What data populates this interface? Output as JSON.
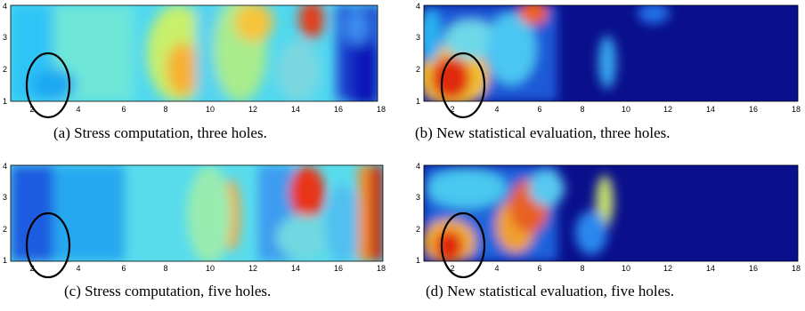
{
  "figure": {
    "panels": [
      {
        "id": "a",
        "caption": "(a) Stress computation, three holes.",
        "x_ticks": [
          "2",
          "4",
          "6",
          "8",
          "10",
          "12",
          "14",
          "16",
          "18"
        ],
        "y_ticks": [
          "1",
          "2",
          "3",
          "4"
        ],
        "colormap": "jet",
        "hole_outline": {
          "center_x": 2.5,
          "center_y": 1.5,
          "radius_x": 1.0,
          "radius_y": 1.0
        }
      },
      {
        "id": "b",
        "caption": "(b) New statistical evaluation, three holes.",
        "x_ticks": [
          "2",
          "4",
          "6",
          "8",
          "10",
          "12",
          "14",
          "16",
          "18"
        ],
        "y_ticks": [
          "1",
          "2",
          "3",
          "4"
        ],
        "colormap": "jet",
        "hole_outline": {
          "center_x": 2.5,
          "center_y": 1.5,
          "radius_x": 1.0,
          "radius_y": 1.0
        }
      },
      {
        "id": "c",
        "caption": "(c) Stress computation, five holes.",
        "x_ticks": [
          "2",
          "4",
          "6",
          "8",
          "10",
          "12",
          "14",
          "16",
          "18"
        ],
        "y_ticks": [
          "1",
          "2",
          "3",
          "4"
        ],
        "colormap": "jet",
        "hole_outline": {
          "center_x": 2.5,
          "center_y": 1.5,
          "radius_x": 1.0,
          "radius_y": 1.0
        }
      },
      {
        "id": "d",
        "caption": "(d) New statistical evaluation, five holes.",
        "x_ticks": [
          "2",
          "4",
          "6",
          "8",
          "10",
          "12",
          "14",
          "16",
          "18"
        ],
        "y_ticks": [
          "1",
          "2",
          "3",
          "4"
        ],
        "colormap": "jet",
        "hole_outline": {
          "center_x": 2.5,
          "center_y": 1.5,
          "radius_x": 1.0,
          "radius_y": 1.0
        }
      }
    ]
  },
  "chart_data": [
    {
      "type": "heatmap",
      "x_range": [
        1,
        18
      ],
      "y_range": [
        1,
        4
      ],
      "colormap": "jet",
      "grid": false
    },
    {
      "type": "heatmap",
      "x_range": [
        1,
        18
      ],
      "y_range": [
        1,
        4
      ],
      "colormap": "jet",
      "grid": false
    },
    {
      "type": "heatmap",
      "x_range": [
        1,
        18
      ],
      "y_range": [
        1,
        4
      ],
      "colormap": "jet",
      "grid": false
    },
    {
      "type": "heatmap",
      "x_range": [
        1,
        18
      ],
      "y_range": [
        1,
        4
      ],
      "colormap": "jet",
      "grid": false
    }
  ]
}
